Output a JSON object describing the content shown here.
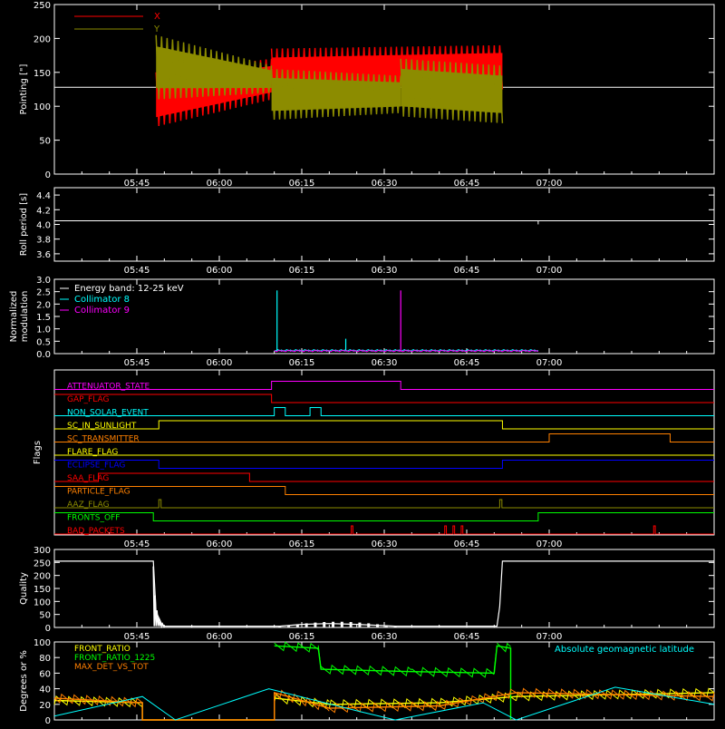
{
  "chart_data": [
    {
      "type": "area",
      "ylabel": "Pointing [\"]",
      "ylim": [
        0,
        250
      ],
      "yticks": [
        0,
        50,
        100,
        150,
        200,
        250
      ],
      "xticks": [
        "05:45",
        "06:00",
        "06:15",
        "06:30",
        "06:45",
        "07:00"
      ],
      "reference_line": 128,
      "legend_position": "top-left",
      "series": [
        {
          "name": "X",
          "color": "#ff0000",
          "segments": [
            {
              "start": "05:48.5",
              "end": "06:09.5",
              "low": [
                70,
                110
              ],
              "high": [
                150,
                170
              ]
            },
            {
              "start": "06:09.5",
              "end": "06:51.5",
              "low": [
                110,
                125
              ],
              "high": [
                185,
                190
              ]
            }
          ]
        },
        {
          "name": "Y",
          "color": "#8c8c00",
          "segments": [
            {
              "start": "05:48.5",
              "end": "06:09.5",
              "low": [
                110,
                120
              ],
              "high": [
                205,
                160
              ]
            },
            {
              "start": "06:09.5",
              "end": "06:33",
              "low": [
                80,
                90
              ],
              "high": [
                155,
                145
              ]
            },
            {
              "start": "06:33",
              "end": "06:51.5",
              "low": [
                85,
                75
              ],
              "high": [
                170,
                160
              ]
            }
          ]
        }
      ]
    },
    {
      "type": "line",
      "ylabel": "Roll period [s]",
      "ylim": [
        3.5,
        4.5
      ],
      "yticks": [
        "3.6",
        "3.8",
        "4.0",
        "4.2",
        "4.4"
      ],
      "xticks": [
        "05:45",
        "06:00",
        "06:15",
        "06:30",
        "06:45",
        "07:00"
      ],
      "series": [
        {
          "name": "",
          "color": "#ffffff",
          "value": 4.05,
          "x_range": [
            "05:30",
            "07:30"
          ]
        }
      ]
    },
    {
      "type": "line",
      "ylabel": "Normalized modulation",
      "ylim": [
        0,
        3.0
      ],
      "yticks": [
        "0.0",
        "0.5",
        "1.0",
        "1.5",
        "2.0",
        "2.5",
        "3.0"
      ],
      "xticks": [
        "05:45",
        "06:00",
        "06:15",
        "06:30",
        "06:45",
        "07:00"
      ],
      "legend_position": "top-left",
      "legend_title": "Energy band: 12-25 keV",
      "series": [
        {
          "name": "Collimator 8",
          "color": "#00ffff",
          "baseline": 0.1,
          "x_range": [
            "06:10",
            "06:58"
          ],
          "spikes": [
            {
              "x": "06:10.5",
              "y": 2.55
            },
            {
              "x": "06:23",
              "y": 0.6
            }
          ]
        },
        {
          "name": "Collimator 9",
          "color": "#ff00ff",
          "baseline": 0.08,
          "x_range": [
            "06:10",
            "06:58"
          ],
          "spikes": [
            {
              "x": "06:33",
              "y": 2.55
            }
          ]
        }
      ]
    },
    {
      "type": "line",
      "ylabel": "Flags",
      "xticks": [
        "05:45",
        "06:00",
        "06:15",
        "06:30",
        "06:45",
        "07:00"
      ],
      "flags": [
        {
          "name": "ATTENUATOR_STATE",
          "color": "#ff00ff",
          "high": [
            [
              "06:09.5",
              "06:33"
            ]
          ]
        },
        {
          "name": "GAP_FLAG",
          "color": "#ff0000",
          "high": [
            [
              "05:30",
              "06:09.5"
            ]
          ]
        },
        {
          "name": "NON_SOLAR_EVENT",
          "color": "#00ffff",
          "high": [
            [
              "06:10",
              "06:12"
            ],
            [
              "06:16.5",
              "06:18.5"
            ]
          ]
        },
        {
          "name": "SC_IN_SUNLIGHT",
          "color": "#ffff00",
          "high": [
            [
              "05:49",
              "06:51.5"
            ]
          ]
        },
        {
          "name": "SC_TRANSMITTER",
          "color": "#ff8000",
          "high": [
            [
              "07:00",
              "07:22"
            ]
          ]
        },
        {
          "name": "FLARE_FLAG",
          "color": "#ffff00",
          "high": []
        },
        {
          "name": "ECLIPSE_FLAG",
          "color": "#0000ff",
          "high": [
            [
              "05:30",
              "05:49"
            ],
            [
              "06:51.5",
              "07:30"
            ]
          ]
        },
        {
          "name": "SAA_FLAG",
          "color": "#ff0000",
          "high": [
            [
              "05:38",
              "06:05.5"
            ]
          ]
        },
        {
          "name": "PARTICLE_FLAG",
          "color": "#ff8000",
          "high": [
            [
              "05:30",
              "06:12"
            ]
          ]
        },
        {
          "name": "AAZ_FLAG",
          "color": "#8c8c00",
          "high": [
            [
              "05:49",
              "05:49.4"
            ],
            [
              "06:51",
              "06:51.4"
            ]
          ]
        },
        {
          "name": "FRONTS_OFF",
          "color": "#00ff00",
          "high": [
            [
              "05:30",
              "05:48"
            ],
            [
              "06:58",
              "07:30"
            ]
          ]
        },
        {
          "name": "BAD_PACKETS",
          "color": "#ff0000",
          "high": [
            [
              "06:24",
              "06:24.3"
            ],
            [
              "06:41",
              "06:41.3"
            ],
            [
              "06:42.5",
              "06:42.8"
            ],
            [
              "06:44",
              "06:44.3"
            ],
            [
              "07:19",
              "07:19.3"
            ]
          ]
        }
      ]
    },
    {
      "type": "line",
      "ylabel": "Quality",
      "ylim": [
        0,
        300
      ],
      "yticks": [
        0,
        50,
        100,
        150,
        200,
        250,
        300
      ],
      "xticks": [
        "05:45",
        "06:00",
        "06:15",
        "06:30",
        "06:45",
        "07:00"
      ],
      "series": [
        {
          "name": "",
          "color": "#ffffff",
          "points": [
            [
              "05:30",
              255
            ],
            [
              "05:48",
              255
            ],
            [
              "05:48.5",
              60
            ],
            [
              "05:49.5",
              15
            ],
            [
              "05:50",
              5
            ],
            [
              "06:11",
              5
            ],
            [
              "06:15",
              12
            ],
            [
              "06:20",
              15
            ],
            [
              "06:25",
              12
            ],
            [
              "06:32",
              5
            ],
            [
              "06:50.5",
              5
            ],
            [
              "06:51",
              80
            ],
            [
              "06:51.5",
              255
            ],
            [
              "07:30",
              255
            ]
          ]
        }
      ]
    },
    {
      "type": "line",
      "ylabel": "Degrees or %",
      "ylim": [
        0,
        100
      ],
      "yticks": [
        0,
        20,
        40,
        60,
        80,
        100
      ],
      "xticks": [
        "05:45",
        "06:00",
        "06:15",
        "06:30",
        "06:45",
        "07:00"
      ],
      "legend_position": "top-left",
      "series": [
        {
          "name": "FRONT_RATIO",
          "color": "#ffff00",
          "points": [
            [
              "05:30",
              25
            ],
            [
              "05:46",
              22
            ],
            [
              "05:46",
              0
            ],
            [
              "06:10",
              0
            ],
            [
              "06:10",
              28
            ],
            [
              "06:20",
              20
            ],
            [
              "06:40",
              22
            ],
            [
              "06:54",
              30
            ],
            [
              "07:30",
              35
            ]
          ]
        },
        {
          "name": "FRONT_RATIO_1225",
          "color": "#00ff00",
          "points": [
            [
              "06:10",
              95
            ],
            [
              "06:18",
              92
            ],
            [
              "06:18.5",
              65
            ],
            [
              "06:35",
              62
            ],
            [
              "06:50",
              60
            ],
            [
              "06:50.5",
              95
            ],
            [
              "06:53",
              92
            ],
            [
              "06:53",
              0
            ]
          ]
        },
        {
          "name": "MAX_DET_VS_TOT",
          "color": "#ff8000",
          "points": [
            [
              "05:30",
              28
            ],
            [
              "05:46",
              22
            ],
            [
              "05:46",
              0
            ],
            [
              "06:10",
              0
            ],
            [
              "06:10",
              35
            ],
            [
              "06:20",
              15
            ],
            [
              "06:40",
              18
            ],
            [
              "06:54",
              35
            ],
            [
              "07:30",
              30
            ]
          ]
        },
        {
          "name": "Absolute geomagnetic latitude",
          "color": "#00ffff",
          "points": [
            [
              "05:30",
              5
            ],
            [
              "05:46",
              30
            ],
            [
              "05:52",
              0
            ],
            [
              "06:09",
              40
            ],
            [
              "06:26",
              10
            ],
            [
              "06:32",
              0
            ],
            [
              "06:48",
              22
            ],
            [
              "06:54",
              0
            ],
            [
              "07:12",
              42
            ],
            [
              "07:30",
              20
            ]
          ]
        }
      ]
    }
  ]
}
